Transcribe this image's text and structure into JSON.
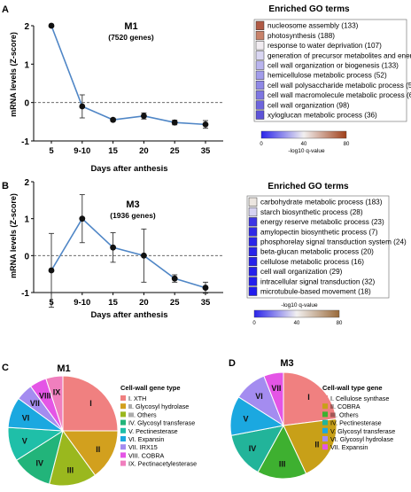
{
  "panels": {
    "A": {
      "letter": "A",
      "title": "M1",
      "subtitle": "(7520 genes)",
      "ylabel": "mRNA levels (Z-score)",
      "xlabel": "Days after anthesis",
      "go_title": "Enriched GO terms",
      "colorbar_label": "-log10 q-value",
      "colorbar_ticks": [
        "0",
        "40",
        "80"
      ],
      "go_terms": [
        {
          "label": "nucleosome assembly (133)",
          "color": "#b05a45"
        },
        {
          "label": "photosynthesis (188)",
          "color": "#c8826a"
        },
        {
          "label": "response to water deprivation (107)",
          "color": "#f1ecf1"
        },
        {
          "label": "generation of precursor metabolites and energy (183)",
          "color": "#d9d6f2"
        },
        {
          "label": "cell wall organization or biogenesis (133)",
          "color": "#b9b4ee"
        },
        {
          "label": "hemicellulose metabolic process (52)",
          "color": "#a29ceb"
        },
        {
          "label": "cell wall polysaccharide metabolic process (53)",
          "color": "#8f88e6"
        },
        {
          "label": "cell wall macromolecule metabolic process (63)",
          "color": "#7e76e2"
        },
        {
          "label": "cell wall organization (98)",
          "color": "#6d64dd"
        },
        {
          "label": "xyloglucan metabolic process (36)",
          "color": "#5d53d8"
        }
      ]
    },
    "B": {
      "letter": "B",
      "title": "M3",
      "subtitle": "(1936 genes)",
      "ylabel": "mRNA levels (Z-score)",
      "xlabel": "Days after anthesis",
      "go_title": "Enriched GO terms",
      "colorbar_label": "-log10 q-value",
      "colorbar_ticks": [
        "0",
        "40",
        "80"
      ],
      "go_terms": [
        {
          "label": "carbohydrate metabolic process (183)",
          "color": "#ece6e0"
        },
        {
          "label": "starch biosynthetic process (28)",
          "color": "#d6d2f2"
        },
        {
          "label": "energy reserve metabolic process (23)",
          "color": "#3c34e4"
        },
        {
          "label": "amylopectin biosynthetic process (7)",
          "color": "#3029e6"
        },
        {
          "label": "phosphorelay signal transduction system (24)",
          "color": "#2b25e8"
        },
        {
          "label": "beta-glucan metabolic process (20)",
          "color": "#2a24e9"
        },
        {
          "label": "cellulose metabolic process (16)",
          "color": "#2822ea"
        },
        {
          "label": "cell wall organization (29)",
          "color": "#2620eb"
        },
        {
          "label": "intracellular signal transduction (32)",
          "color": "#241eec"
        },
        {
          "label": "microtubule-based movement (18)",
          "color": "#221ced"
        }
      ]
    },
    "C": {
      "letter": "C",
      "title": "M1",
      "legend_title": "Cell-wall gene type"
    },
    "D": {
      "letter": "D",
      "title": "M3",
      "legend_title": "Cell-wall type gene"
    }
  },
  "chart_data": [
    {
      "type": "line",
      "panel": "A",
      "x": [
        "5",
        "9-10",
        "15",
        "20",
        "25",
        "35"
      ],
      "y": [
        2.0,
        -0.1,
        -0.45,
        -0.35,
        -0.52,
        -0.57
      ],
      "error": [
        0.03,
        0.3,
        0.04,
        0.08,
        0.06,
        0.1
      ],
      "ylim": [
        -1,
        2
      ],
      "yticks": [
        "-1",
        "0",
        "1",
        "2"
      ],
      "reference_line": 0,
      "line_color": "#4f86c6"
    },
    {
      "type": "line",
      "panel": "B",
      "x": [
        "5",
        "9-10",
        "15",
        "20",
        "25",
        "35"
      ],
      "y": [
        -0.4,
        1.0,
        0.22,
        0.0,
        -0.62,
        -0.87
      ],
      "error": [
        1.0,
        0.65,
        0.4,
        0.72,
        0.1,
        0.15
      ],
      "ylim": [
        -1,
        2
      ],
      "yticks": [
        "-1",
        "0",
        "1",
        "2"
      ],
      "reference_line": 0,
      "line_color": "#4f86c6"
    },
    {
      "type": "pie",
      "panel": "C",
      "labels": [
        "I",
        "II",
        "III",
        "IV",
        "V",
        "VI",
        "VII",
        "VIII",
        "IX"
      ],
      "legend": [
        "I. XTH",
        "II. Glycosyl hydrolase",
        "III. Others",
        "IV. Glycosyl transferase",
        "V. Pectinesterase",
        "VI. Expansin",
        "VII. IRX15",
        "VIII. COBRA",
        "IX. Pectinacetylesterase"
      ],
      "values": [
        25,
        15,
        14,
        12,
        10,
        9,
        5,
        5,
        5
      ],
      "colors": [
        "#f08080",
        "#d2a01e",
        "#9ab81e",
        "#22b47a",
        "#1fbfa8",
        "#1ba8e0",
        "#a48cf0",
        "#e455e6",
        "#f07fbe"
      ]
    },
    {
      "type": "pie",
      "panel": "D",
      "labels": [
        "I",
        "II",
        "III",
        "IV",
        "V",
        "VI",
        "VII"
      ],
      "legend": [
        "I. Cellulose synthase",
        "II. COBRA",
        "III. Others",
        "IV. Pectinesterase",
        "V. Glycosyl transferase",
        "VI. Glycosyl hydrolase",
        "VII. Expansin"
      ],
      "values": [
        23,
        20,
        15,
        14,
        12,
        10,
        6
      ],
      "colors": [
        "#f08080",
        "#c8a018",
        "#3eb030",
        "#22b49a",
        "#1ba8e0",
        "#a48cf0",
        "#e455e6"
      ]
    }
  ]
}
